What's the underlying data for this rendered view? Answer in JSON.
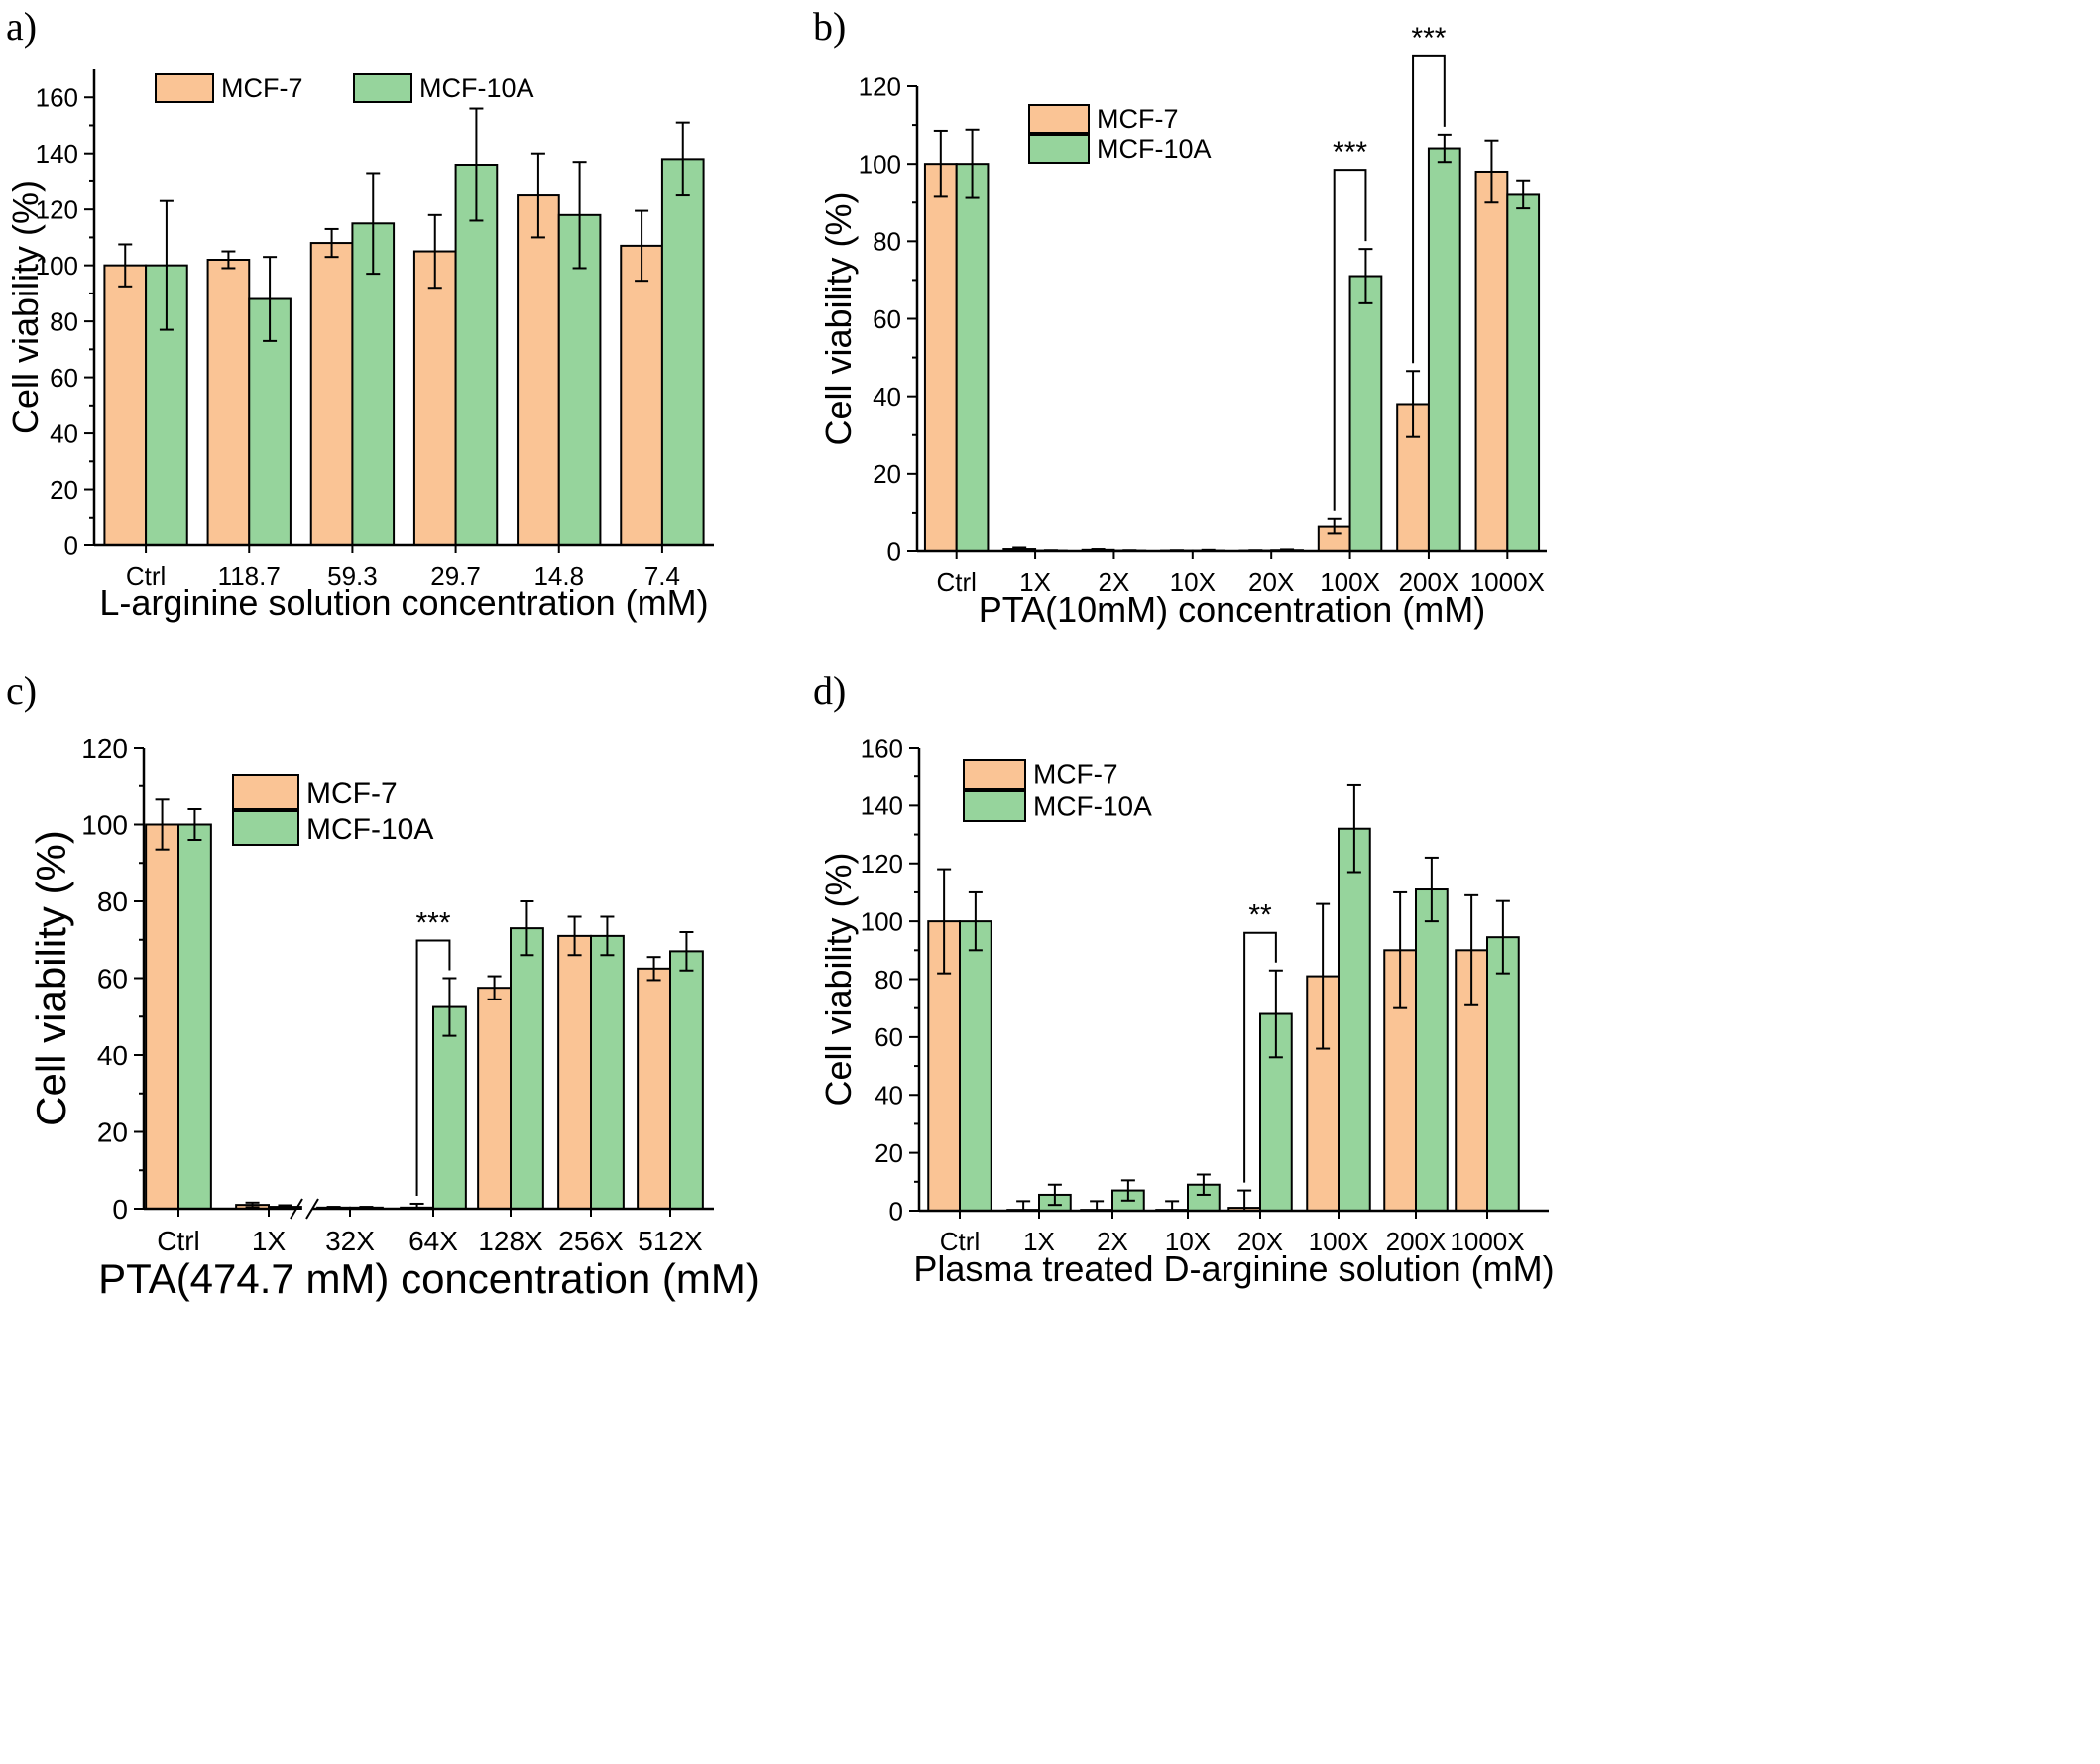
{
  "colors": {
    "mcf7": "#fac495",
    "mcf10a": "#96d49c",
    "stroke": "#000000"
  },
  "chart_data": [
    {
      "panel_label": "a)",
      "type": "bar",
      "xlabel": "L-arginine solution concentration (mM)",
      "ylabel": "Cell viability (%)",
      "ylim": [
        0,
        170
      ],
      "yticks": [
        0,
        20,
        40,
        60,
        80,
        100,
        120,
        140,
        160
      ],
      "categories": [
        "Ctrl",
        "118.7",
        "59.3",
        "29.7",
        "14.8",
        "7.4"
      ],
      "legend": "top",
      "series": [
        {
          "name": "MCF-7",
          "values": [
            100,
            102,
            108,
            105,
            125,
            107
          ],
          "errors": [
            7.5,
            3,
            5,
            13,
            15,
            12.5
          ]
        },
        {
          "name": "MCF-10A",
          "values": [
            100,
            88,
            115,
            136,
            118,
            138
          ],
          "errors": [
            23,
            15,
            18,
            20,
            19,
            13
          ]
        }
      ],
      "annotations": []
    },
    {
      "panel_label": "b)",
      "type": "bar",
      "xlabel": "PTA(10mM) concentration (mM)",
      "ylabel": "Cell viability (%)",
      "ylim": [
        0,
        120
      ],
      "yticks": [
        0,
        20,
        40,
        60,
        80,
        100,
        120
      ],
      "categories": [
        "Ctrl",
        "1X",
        "2X",
        "10X",
        "20X",
        "100X",
        "200X",
        "1000X"
      ],
      "legend": "top-left",
      "series": [
        {
          "name": "MCF-7",
          "values": [
            100,
            0.5,
            0.3,
            0.1,
            0.1,
            6.5,
            38,
            98
          ],
          "errors": [
            8.5,
            0.4,
            0.2,
            0.1,
            0.1,
            2,
            8.5,
            8
          ]
        },
        {
          "name": "MCF-10A",
          "values": [
            100,
            0.1,
            0.1,
            0.1,
            0.2,
            71,
            104,
            92
          ],
          "errors": [
            8.8,
            0.1,
            0.1,
            0.2,
            0.2,
            7,
            3.5,
            3.5
          ]
        }
      ],
      "annotations": [
        {
          "text": "***",
          "category_index": 5
        },
        {
          "text": "***",
          "category_index": 6
        }
      ]
    },
    {
      "panel_label": "c)",
      "type": "bar",
      "xlabel": "PTA(474.7 mM) concentration (mM)",
      "ylabel": "Cell viability (%)",
      "ylim": [
        0,
        120
      ],
      "yticks": [
        0,
        20,
        40,
        60,
        80,
        100,
        120
      ],
      "categories": [
        "Ctrl",
        "1X",
        "32X",
        "64X",
        "128X",
        "256X",
        "512X"
      ],
      "axis_break_after_index": 1,
      "legend": "top-left",
      "series": [
        {
          "name": "MCF-7",
          "values": [
            100,
            1,
            0.3,
            0.3,
            57.5,
            71,
            62.5
          ],
          "errors": [
            6.5,
            0.6,
            0.2,
            1,
            3,
            5,
            3
          ]
        },
        {
          "name": "MCF-10A",
          "values": [
            100,
            0.5,
            0.3,
            52.5,
            73,
            71,
            67
          ],
          "errors": [
            4,
            0.4,
            0.2,
            7.5,
            7,
            5,
            5
          ]
        }
      ],
      "annotations": [
        {
          "text": "***",
          "category_index": 3
        }
      ]
    },
    {
      "panel_label": "d)",
      "type": "bar",
      "xlabel": "Plasma treated D-arginine solution (mM)",
      "ylabel": "Cell viability (%)",
      "ylim": [
        0,
        160
      ],
      "yticks": [
        0,
        20,
        40,
        60,
        80,
        100,
        120,
        140,
        160
      ],
      "categories": [
        "Ctrl",
        "1X",
        "2X",
        "10X",
        "20X",
        "100X",
        "200X",
        "1000X"
      ],
      "legend": "top-left",
      "series": [
        {
          "name": "MCF-7",
          "values": [
            100,
            0.3,
            0.3,
            0.3,
            1,
            81,
            90,
            90
          ],
          "errors": [
            18,
            3,
            3,
            3,
            6,
            25,
            20,
            19
          ]
        },
        {
          "name": "MCF-10A",
          "values": [
            100,
            5.5,
            7,
            9,
            68,
            132,
            111,
            94.5
          ],
          "errors": [
            10,
            3.5,
            3.5,
            3.5,
            15,
            15,
            11,
            12.5
          ]
        }
      ],
      "annotations": [
        {
          "text": "**",
          "category_index": 4
        }
      ]
    }
  ]
}
